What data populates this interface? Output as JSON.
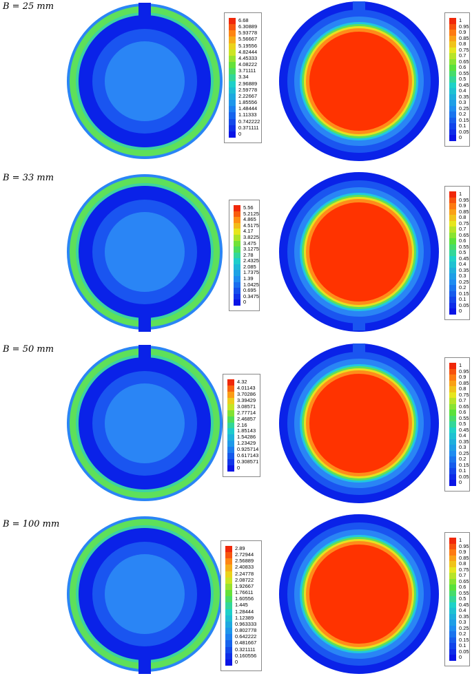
{
  "colors": {
    "deep_blue": "#0a22e8",
    "mid_blue": "#1a55f0",
    "light_blue": "#2a85f5",
    "cyan": "#20c8e0",
    "green": "#5ee05a",
    "red": "#ff3300",
    "orange": "#ff8c1a"
  },
  "panels": [
    {
      "label": "B = 25 mm",
      "left_legend": [
        "6.68",
        "6.30889",
        "5.93778",
        "5.56667",
        "5.19556",
        "4.82444",
        "4.45333",
        "4.08222",
        "3.71111",
        "3.34",
        "2.96889",
        "2.59778",
        "2.22667",
        "1.85556",
        "1.48444",
        "1.11333",
        "0.742222",
        "0.371111",
        "0"
      ],
      "right_legend": [
        "1",
        "0.95",
        "0.9",
        "0.85",
        "0.8",
        "0.75",
        "0.7",
        "0.65",
        "0.6",
        "0.55",
        "0.5",
        "0.45",
        "0.4",
        "0.35",
        "0.3",
        "0.25",
        "0.2",
        "0.15",
        "0.1",
        "0.05",
        "0"
      ]
    },
    {
      "label": "B = 33 mm",
      "left_legend": [
        "5.56",
        "5.2125",
        "4.865",
        "4.5175",
        "4.17",
        "3.8225",
        "3.475",
        "3.1275",
        "2.78",
        "2.4325",
        "2.085",
        "1.7375",
        "1.39",
        "1.0425",
        "0.695",
        "0.3475",
        "0"
      ],
      "right_legend": [
        "1",
        "0.95",
        "0.9",
        "0.85",
        "0.8",
        "0.75",
        "0.7",
        "0.65",
        "0.6",
        "0.55",
        "0.5",
        "0.45",
        "0.4",
        "0.35",
        "0.3",
        "0.25",
        "0.2",
        "0.15",
        "0.1",
        "0.05",
        "0"
      ]
    },
    {
      "label": "B = 50 mm",
      "left_legend": [
        "4.32",
        "4.01143",
        "3.70286",
        "3.39429",
        "3.08571",
        "2.77714",
        "2.46857",
        "2.16",
        "1.85143",
        "1.54286",
        "1.23429",
        "0.925714",
        "0.617143",
        "0.308571",
        "0"
      ],
      "right_legend": [
        "1",
        "0.95",
        "0.9",
        "0.85",
        "0.8",
        "0.75",
        "0.7",
        "0.65",
        "0.6",
        "0.55",
        "0.5",
        "0.45",
        "0.4",
        "0.35",
        "0.3",
        "0.25",
        "0.2",
        "0.15",
        "0.1",
        "0.05",
        "0"
      ]
    },
    {
      "label": "B = 100 mm",
      "left_legend": [
        "2.89",
        "2.72944",
        "2.56889",
        "2.40833",
        "2.24778",
        "2.08722",
        "1.92667",
        "1.76611",
        "1.60556",
        "1.445",
        "1.28444",
        "1.12389",
        "0.963333",
        "0.802778",
        "0.642222",
        "0.481667",
        "0.321111",
        "0.160556",
        "0"
      ],
      "right_legend": [
        "1",
        "0.95",
        "0.9",
        "0.85",
        "0.8",
        "0.75",
        "0.7",
        "0.65",
        "0.6",
        "0.55",
        "0.5",
        "0.45",
        "0.4",
        "0.35",
        "0.3",
        "0.25",
        "0.2",
        "0.15",
        "0.1",
        "0.05",
        "0"
      ]
    }
  ]
}
